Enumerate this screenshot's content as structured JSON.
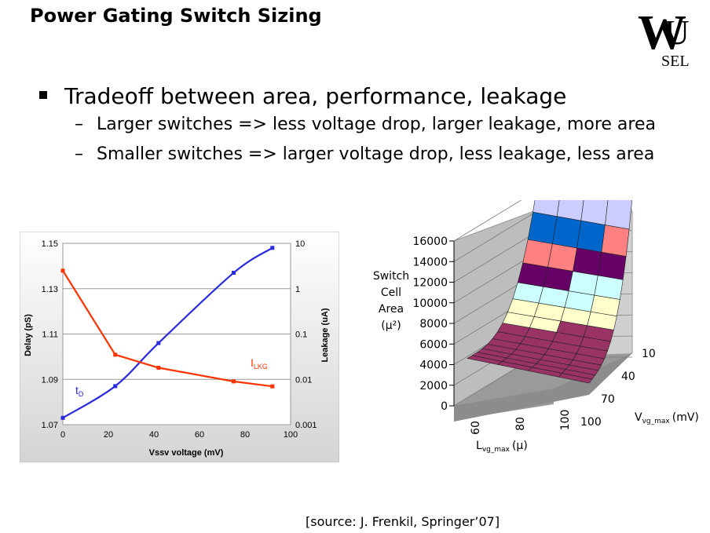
{
  "slide": {
    "title": "Power Gating Switch Sizing",
    "bullet": "Tradeoff between area, performance, leakage",
    "sub_bullets": [
      "Larger switches => less voltage drop, larger leakage, more area",
      "Smaller switches => larger voltage drop, less leakage, less area"
    ],
    "dash": "–",
    "source": "[source: J. Frenkil, Springer’07]",
    "logo": {
      "letters": "WU",
      "sub": "SEL"
    }
  },
  "chart_data": [
    {
      "type": "line",
      "xlabel": "Vssv voltage (mV)",
      "ylabel": "Delay (pS)",
      "y2label": "Leakage (uA)",
      "x_ticks": [
        "0",
        "20",
        "40",
        "60",
        "80",
        "100"
      ],
      "y_ticks": [
        "1.07",
        "1.09",
        "1.11",
        "1.13",
        "1.15"
      ],
      "y2_ticks": [
        "0.001",
        "0.01",
        "0.1",
        "1",
        "10"
      ],
      "xlim": [
        0,
        100
      ],
      "ylim": [
        1.07,
        1.15
      ],
      "y2lim": [
        0.001,
        10
      ],
      "y2_scale": "log",
      "grid": true,
      "series": [
        {
          "name": "tD",
          "label_main": "t",
          "label_sub": "D",
          "axis": "left",
          "color": "#2a2ae0",
          "x": [
            0,
            23,
            42,
            75,
            92
          ],
          "values": [
            1.073,
            1.087,
            1.106,
            1.137,
            1.148
          ]
        },
        {
          "name": "ILKG",
          "label_main": "I",
          "label_sub": "LKG",
          "axis": "right",
          "color": "#ff3300",
          "x": [
            0,
            23,
            42,
            75,
            92
          ],
          "values": [
            2.5,
            0.035,
            0.018,
            0.009,
            0.007
          ]
        }
      ]
    },
    {
      "type": "surface3d",
      "zlabel_lines": [
        "Switch",
        "Cell",
        "Area",
        "(μ²)"
      ],
      "z_ticks": [
        "0",
        "2000",
        "4000",
        "6000",
        "8000",
        "10000",
        "12000",
        "14000",
        "16000"
      ],
      "zlim": [
        0,
        16000
      ],
      "x_label_main": "L",
      "x_label_sub": "vg_max",
      "x_label_unit": "(μ)",
      "x_ticks": [
        "60",
        "80",
        "100"
      ],
      "y_label_main": "V",
      "y_label_sub": "vg_max",
      "y_label_unit": "(mV)",
      "y_ticks": [
        "10",
        "40",
        "70",
        "100"
      ],
      "band_colors": [
        "#993366",
        "#ffffcc",
        "#ccffff",
        "#660066",
        "#ff8080",
        "#0066cc",
        "#ccccff"
      ],
      "band_edges": [
        0,
        4000,
        6000,
        8000,
        10000,
        12000,
        14000,
        16000
      ]
    }
  ]
}
